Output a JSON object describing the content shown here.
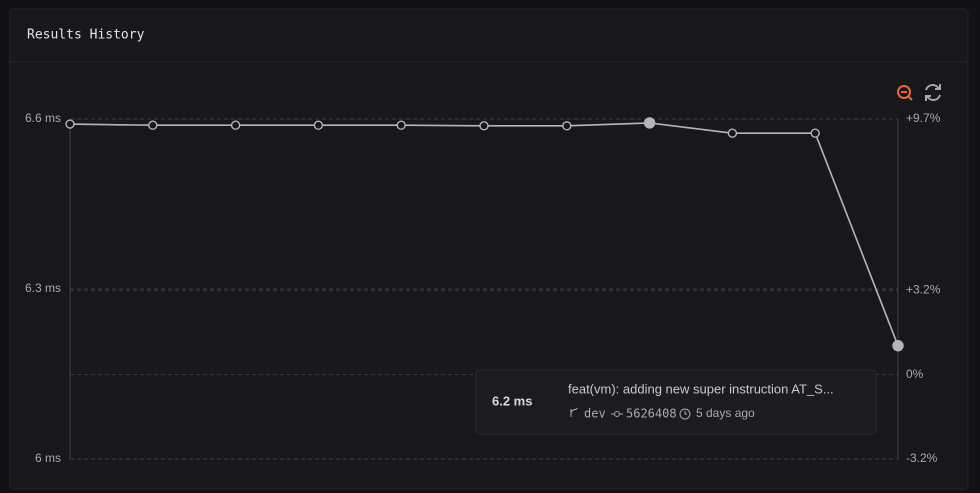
{
  "chart_data": {
    "type": "line",
    "title": "Results History",
    "categories": [
      null,
      null,
      null,
      null,
      null,
      null,
      null,
      null,
      null,
      null,
      null
    ],
    "series": [
      {
        "name": "Results",
        "color": "#b4b4bc",
        "values": [
          6.591,
          6.589,
          6.589,
          6.589,
          6.589,
          6.588,
          6.588,
          6.593,
          6.575,
          6.575,
          6.2
        ]
      }
    ],
    "ylim": [
      6,
      6.6
    ],
    "yticks": [
      {
        "value": 6,
        "label": "6 ms"
      },
      {
        "value": 6.3,
        "label": "6.3 ms"
      },
      {
        "value": 6.6,
        "label": "6.6 ms"
      }
    ],
    "y2lim": [
      -3.2,
      9.7
    ],
    "y2ticks": [
      {
        "value": -3.2,
        "label": "-3.2%"
      },
      {
        "value": 0,
        "label": "0%"
      },
      {
        "value": 3.2,
        "label": "+3.2%"
      },
      {
        "value": 9.7,
        "label": "+9.7%"
      }
    ],
    "grid": true,
    "tooltip": {
      "value": "6.2 ms",
      "message": "feat(vm): adding new super instruction AT_S...",
      "branch": "dev",
      "commit": "5626408",
      "time": "5 days ago"
    }
  }
}
